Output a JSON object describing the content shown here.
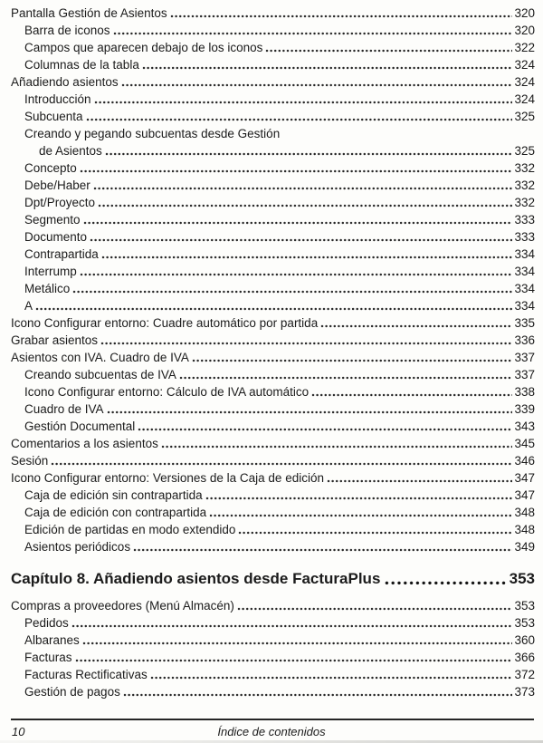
{
  "colors": {
    "text": "#1b1b1b",
    "background": "#fdfdfb",
    "rule": "#262626"
  },
  "footer": {
    "page_number": "10",
    "title": "Índice de contenidos"
  },
  "toc": {
    "chapter_heading": {
      "label": "Capítulo 8. Añadiendo asientos desde FacturaPlus",
      "page": "353"
    },
    "sections": [
      {
        "entries": [
          {
            "label": "Pantalla Gestión de Asientos",
            "page": "320",
            "level": 0
          },
          {
            "label": "Barra de iconos",
            "page": "320",
            "level": 1
          },
          {
            "label": "Campos que aparecen debajo de los iconos",
            "page": "322",
            "level": 1
          },
          {
            "label": "Columnas de la tabla",
            "page": "324",
            "level": 1
          },
          {
            "label": "Añadiendo asientos",
            "page": "324",
            "level": 0
          },
          {
            "label": "Introducción",
            "page": "324",
            "level": 1
          },
          {
            "label": "Subcuenta",
            "page": "325",
            "level": 1
          },
          {
            "label": "Creando y pegando subcuentas desde Gestión",
            "page": "",
            "level": 1
          },
          {
            "label": "de Asientos",
            "page": "325",
            "level": 2
          },
          {
            "label": "Concepto",
            "page": "332",
            "level": 1
          },
          {
            "label": "Debe/Haber",
            "page": "332",
            "level": 1
          },
          {
            "label": "Dpt/Proyecto",
            "page": "332",
            "level": 1
          },
          {
            "label": "Segmento",
            "page": "333",
            "level": 1
          },
          {
            "label": "Documento",
            "page": "333",
            "level": 1
          },
          {
            "label": "Contrapartida",
            "page": "334",
            "level": 1
          },
          {
            "label": "Interrump",
            "page": "334",
            "level": 1
          },
          {
            "label": "Metálico",
            "page": "334",
            "level": 1
          },
          {
            "label": "A",
            "page": "334",
            "level": 1
          },
          {
            "label": "Icono Configurar entorno: Cuadre automático por partida",
            "page": "335",
            "level": 0
          },
          {
            "label": "Grabar asientos",
            "page": "336",
            "level": 0
          },
          {
            "label": "Asientos con IVA. Cuadro de IVA",
            "page": "337",
            "level": 0
          },
          {
            "label": "Creando subcuentas de IVA",
            "page": "337",
            "level": 1
          },
          {
            "label": "Icono Configurar entorno: Cálculo de IVA automático",
            "page": "338",
            "level": 1
          },
          {
            "label": "Cuadro de IVA",
            "page": "339",
            "level": 1
          },
          {
            "label": "Gestión Documental",
            "page": "343",
            "level": 1
          },
          {
            "label": "Comentarios a los asientos",
            "page": "345",
            "level": 0
          },
          {
            "label": "Sesión",
            "page": "346",
            "level": 0
          },
          {
            "label": "Icono Configurar entorno: Versiones de la Caja de edición",
            "page": "347",
            "level": 0
          },
          {
            "label": "Caja de edición sin contrapartida",
            "page": "347",
            "level": 1
          },
          {
            "label": "Caja de edición con contrapartida",
            "page": "348",
            "level": 1
          },
          {
            "label": "Edición de partidas en modo extendido",
            "page": "348",
            "level": 1
          },
          {
            "label": "Asientos periódicos",
            "page": "349",
            "level": 1
          }
        ]
      },
      {
        "entries": [
          {
            "label": "Compras a proveedores (Menú Almacén)",
            "page": "353",
            "level": 0
          },
          {
            "label": "Pedidos",
            "page": "353",
            "level": 1
          },
          {
            "label": "Albaranes",
            "page": "360",
            "level": 1
          },
          {
            "label": "Facturas",
            "page": "366",
            "level": 1
          },
          {
            "label": "Facturas Rectificativas",
            "page": "372",
            "level": 1
          },
          {
            "label": "Gestión de pagos",
            "page": "373",
            "level": 1
          }
        ]
      }
    ]
  }
}
